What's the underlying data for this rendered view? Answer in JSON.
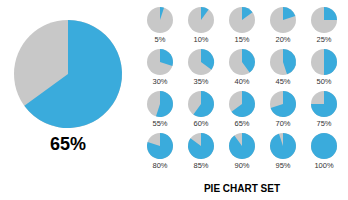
{
  "chart_data": {
    "type": "pie",
    "title": "PIE CHART SET",
    "values": [
      65,
      5,
      10,
      15,
      20,
      25,
      30,
      35,
      40,
      45,
      50,
      55,
      60,
      65,
      70,
      75,
      80,
      85,
      90,
      95,
      100
    ],
    "value_labels": [
      "65%",
      "5%",
      "10%",
      "15%",
      "20%",
      "25%",
      "30%",
      "35%",
      "40%",
      "45%",
      "50%",
      "55%",
      "60%",
      "65%",
      "70%",
      "75%",
      "80%",
      "85%",
      "90%",
      "95%",
      "100%"
    ],
    "data_labels": true,
    "colors": [
      "#3aabdc",
      "#c8c8c8"
    ]
  }
}
